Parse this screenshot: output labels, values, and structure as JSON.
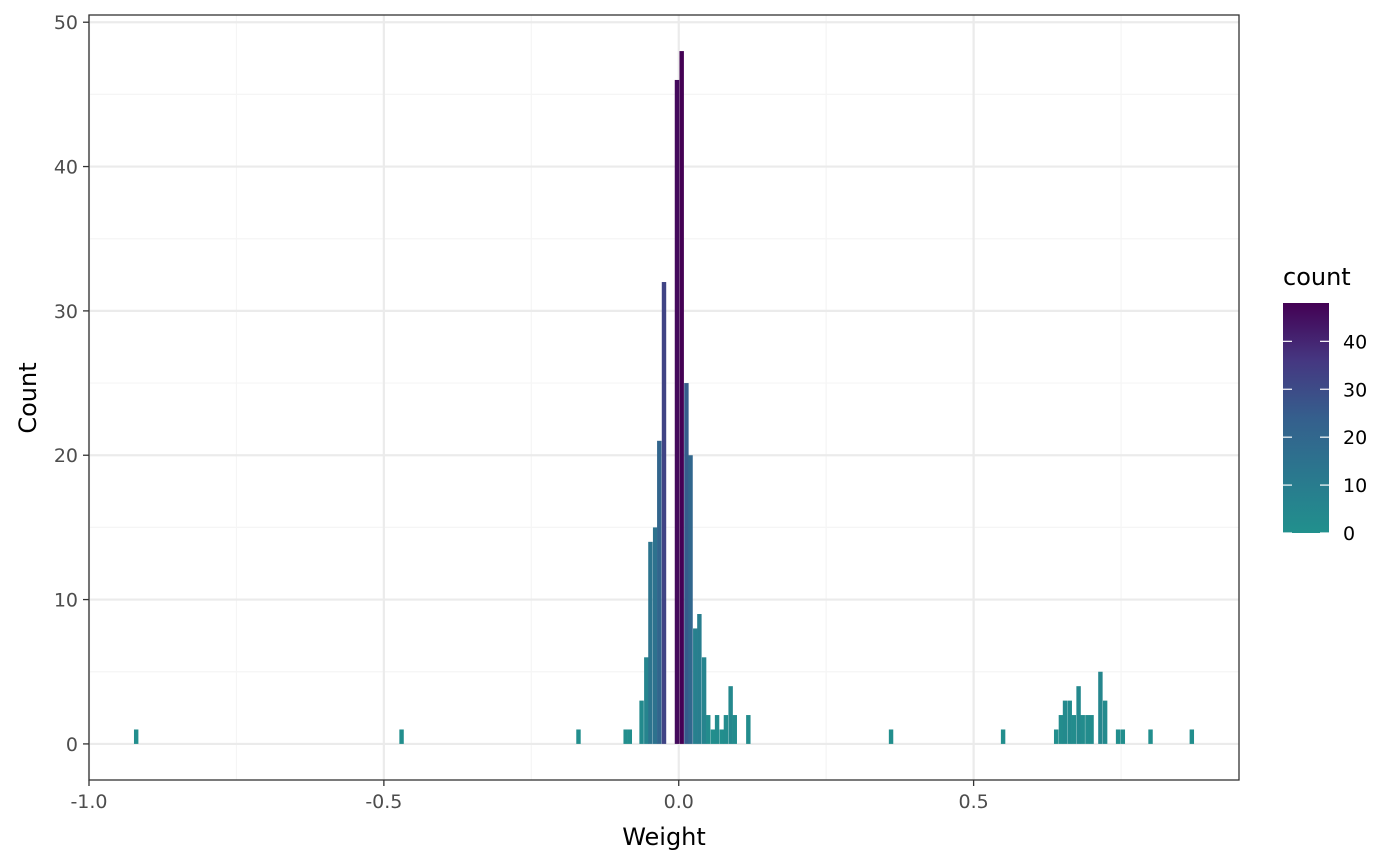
{
  "chart_data": {
    "type": "bar",
    "subtype": "histogram",
    "xlabel": "Weight",
    "ylabel": "Count",
    "xlim": [
      -1.0,
      0.95
    ],
    "ylim": [
      -2.5,
      50.5
    ],
    "x_ticks": [
      -1.0,
      -0.5,
      0.0,
      0.5
    ],
    "x_tick_labels": [
      "-1.0",
      "-0.5",
      "0.0",
      "0.5"
    ],
    "x_minor_ticks": [
      -0.75,
      -0.25,
      0.25,
      0.75
    ],
    "y_ticks": [
      0,
      10,
      20,
      30,
      40,
      50
    ],
    "y_tick_labels": [
      "0",
      "10",
      "20",
      "30",
      "40",
      "50"
    ],
    "y_minor_ticks": [
      5,
      15,
      25,
      35,
      45
    ],
    "grid": true,
    "bin_width": 0.0075,
    "bins": [
      {
        "x": -0.92,
        "count": 1
      },
      {
        "x": -0.47,
        "count": 1
      },
      {
        "x": -0.17,
        "count": 1
      },
      {
        "x": -0.09,
        "count": 1
      },
      {
        "x": -0.083,
        "count": 1
      },
      {
        "x": -0.063,
        "count": 3
      },
      {
        "x": -0.055,
        "count": 6
      },
      {
        "x": -0.048,
        "count": 14
      },
      {
        "x": -0.04,
        "count": 15
      },
      {
        "x": -0.033,
        "count": 21
      },
      {
        "x": -0.025,
        "count": 32
      },
      {
        "x": -0.003,
        "count": 46
      },
      {
        "x": 0.005,
        "count": 48
      },
      {
        "x": 0.013,
        "count": 25
      },
      {
        "x": 0.02,
        "count": 20
      },
      {
        "x": 0.028,
        "count": 8
      },
      {
        "x": 0.035,
        "count": 9
      },
      {
        "x": 0.043,
        "count": 6
      },
      {
        "x": 0.05,
        "count": 2
      },
      {
        "x": 0.058,
        "count": 1
      },
      {
        "x": 0.065,
        "count": 2
      },
      {
        "x": 0.073,
        "count": 1
      },
      {
        "x": 0.08,
        "count": 2
      },
      {
        "x": 0.088,
        "count": 4
      },
      {
        "x": 0.095,
        "count": 2
      },
      {
        "x": 0.118,
        "count": 2
      },
      {
        "x": 0.36,
        "count": 1
      },
      {
        "x": 0.55,
        "count": 1
      },
      {
        "x": 0.64,
        "count": 1
      },
      {
        "x": 0.648,
        "count": 2
      },
      {
        "x": 0.655,
        "count": 3
      },
      {
        "x": 0.663,
        "count": 3
      },
      {
        "x": 0.67,
        "count": 2
      },
      {
        "x": 0.678,
        "count": 4
      },
      {
        "x": 0.685,
        "count": 2
      },
      {
        "x": 0.693,
        "count": 2
      },
      {
        "x": 0.7,
        "count": 2
      },
      {
        "x": 0.715,
        "count": 5
      },
      {
        "x": 0.723,
        "count": 3
      },
      {
        "x": 0.745,
        "count": 1
      },
      {
        "x": 0.753,
        "count": 1
      },
      {
        "x": 0.8,
        "count": 1
      },
      {
        "x": 0.87,
        "count": 1
      }
    ],
    "legend": {
      "title": "count",
      "position": "right",
      "labels": [
        "40",
        "30",
        "20",
        "10",
        "0"
      ],
      "values": [
        40,
        30,
        20,
        10,
        0
      ],
      "range": [
        0,
        48
      ],
      "low_color": "#21908d",
      "high_color": "#440154"
    }
  },
  "colors": {
    "panel_border": "#333333",
    "grid_major": "#ebebeb",
    "grid_minor": "#f5f5f5",
    "axis_text": "#4d4d4d"
  }
}
